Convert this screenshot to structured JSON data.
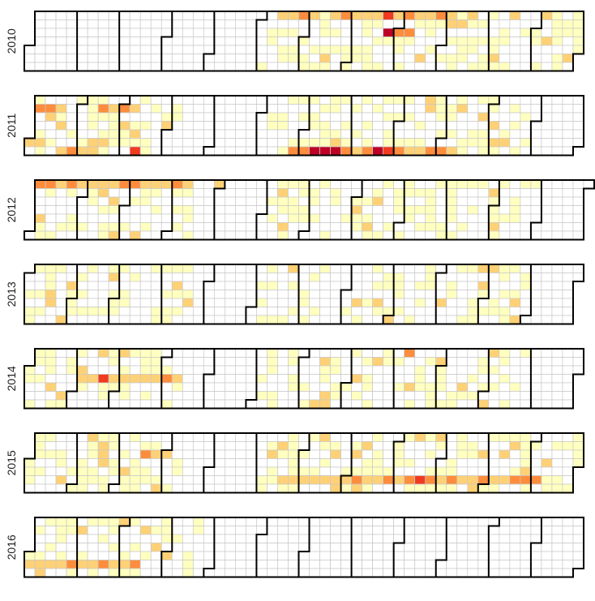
{
  "chart_data": {
    "type": "heatmap",
    "title": "",
    "xlabel": "",
    "ylabel": "",
    "description": "Calendar heatmap, one panel per year; each cell is a day (columns = weeks, rows = weekdays)",
    "years": [
      2010,
      2011,
      2012,
      2013,
      2014,
      2015,
      2016
    ],
    "palette": {
      "none": "#ffffff",
      "level1": "#ffffbf",
      "level2": "#fed176",
      "level3": "#fd8d3c",
      "level4": "#f03b20",
      "level5": "#bd0026"
    },
    "cell_levels_legend": [
      "0 = none",
      "1 = low",
      "2 = medium",
      "3 = high",
      "4 = very high",
      "5 = extreme"
    ],
    "panels": [
      {
        "year": "2010",
        "active_ranges": [
          [
            156,
            365
          ]
        ],
        "fill_rate": 0.5,
        "marks": [
          [
            171,
            2
          ],
          [
            178,
            3
          ],
          [
            185,
            2
          ],
          [
            199,
            2
          ],
          [
            206,
            3
          ],
          [
            213,
            2
          ],
          [
            220,
            2
          ],
          [
            227,
            2
          ],
          [
            234,
            4
          ],
          [
            236,
            5
          ],
          [
            241,
            2
          ],
          [
            243,
            3
          ],
          [
            248,
            3
          ],
          [
            250,
            3
          ],
          [
            255,
            2
          ],
          [
            262,
            2
          ],
          [
            269,
            3
          ],
          [
            276,
            2
          ]
        ]
      },
      {
        "year": "2011",
        "active_ranges": [
          [
            0,
            100
          ],
          [
            155,
            330
          ]
        ],
        "fill_rate": 0.55,
        "marks": [
          [
            3,
            3
          ],
          [
            10,
            3
          ],
          [
            17,
            2
          ],
          [
            22,
            2
          ],
          [
            29,
            3
          ],
          [
            36,
            2
          ],
          [
            45,
            3
          ],
          [
            52,
            2
          ],
          [
            59,
            3
          ],
          [
            66,
            2
          ],
          [
            71,
            4
          ],
          [
            176,
            3
          ],
          [
            183,
            3
          ],
          [
            190,
            5
          ],
          [
            197,
            5
          ],
          [
            204,
            5
          ],
          [
            211,
            3
          ],
          [
            218,
            2
          ],
          [
            225,
            3
          ],
          [
            232,
            5
          ],
          [
            239,
            4
          ],
          [
            246,
            3
          ],
          [
            253,
            2
          ],
          [
            260,
            2
          ],
          [
            267,
            3
          ],
          [
            274,
            3
          ],
          [
            281,
            2
          ]
        ]
      },
      {
        "year": "2012",
        "active_ranges": [
          [
            0,
            105
          ],
          [
            155,
            330
          ]
        ],
        "fill_rate": 0.45,
        "marks": [
          [
            1,
            3
          ],
          [
            8,
            3
          ],
          [
            15,
            2
          ],
          [
            22,
            3
          ],
          [
            29,
            2
          ],
          [
            36,
            2
          ],
          [
            43,
            2
          ],
          [
            50,
            2
          ],
          [
            57,
            3
          ],
          [
            64,
            3
          ],
          [
            71,
            2
          ],
          [
            78,
            2
          ],
          [
            85,
            2
          ],
          [
            92,
            3
          ],
          [
            99,
            2
          ],
          [
            120,
            2
          ]
        ]
      },
      {
        "year": "2013",
        "active_ranges": [
          [
            0,
            110
          ],
          [
            155,
            330
          ]
        ],
        "fill_rate": 0.45,
        "marks": [
          [
            220,
            2
          ],
          [
            234,
            2
          ],
          [
            302,
            2
          ]
        ]
      },
      {
        "year": "2014",
        "active_ranges": [
          [
            0,
            100
          ],
          [
            155,
            330
          ]
        ],
        "fill_rate": 0.45,
        "marks": [
          [
            36,
            2
          ],
          [
            43,
            2
          ],
          [
            50,
            4
          ],
          [
            57,
            2
          ],
          [
            64,
            2
          ],
          [
            71,
            2
          ],
          [
            78,
            2
          ],
          [
            85,
            2
          ],
          [
            92,
            3
          ],
          [
            99,
            2
          ],
          [
            230,
            2
          ],
          [
            250,
            3
          ],
          [
            272,
            2
          ]
        ]
      },
      {
        "year": "2015",
        "active_ranges": [
          [
            0,
            100
          ],
          [
            155,
            365
          ]
        ],
        "fill_rate": 0.5,
        "marks": [
          [
            76,
            3
          ],
          [
            83,
            2
          ],
          [
            90,
            2
          ],
          [
            170,
            2
          ],
          [
            177,
            2
          ],
          [
            184,
            2
          ],
          [
            191,
            2
          ],
          [
            198,
            2
          ],
          [
            205,
            2
          ],
          [
            212,
            2
          ],
          [
            219,
            3
          ],
          [
            226,
            2
          ],
          [
            233,
            2
          ],
          [
            240,
            3
          ],
          [
            247,
            2
          ],
          [
            254,
            3
          ],
          [
            261,
            4
          ],
          [
            268,
            3
          ],
          [
            275,
            2
          ],
          [
            282,
            3
          ],
          [
            289,
            2
          ],
          [
            296,
            2
          ],
          [
            303,
            3
          ],
          [
            310,
            2
          ],
          [
            317,
            2
          ],
          [
            324,
            3
          ],
          [
            331,
            3
          ],
          [
            338,
            3
          ]
        ]
      },
      {
        "year": "2016",
        "active_ranges": [
          [
            0,
            110
          ]
        ],
        "fill_rate": 0.55,
        "marks": [
          [
            1,
            2
          ],
          [
            8,
            2
          ],
          [
            15,
            2
          ],
          [
            22,
            2
          ],
          [
            29,
            3
          ],
          [
            36,
            2
          ],
          [
            43,
            2
          ],
          [
            50,
            3
          ],
          [
            57,
            2
          ],
          [
            64,
            2
          ],
          [
            71,
            3
          ]
        ]
      }
    ]
  }
}
